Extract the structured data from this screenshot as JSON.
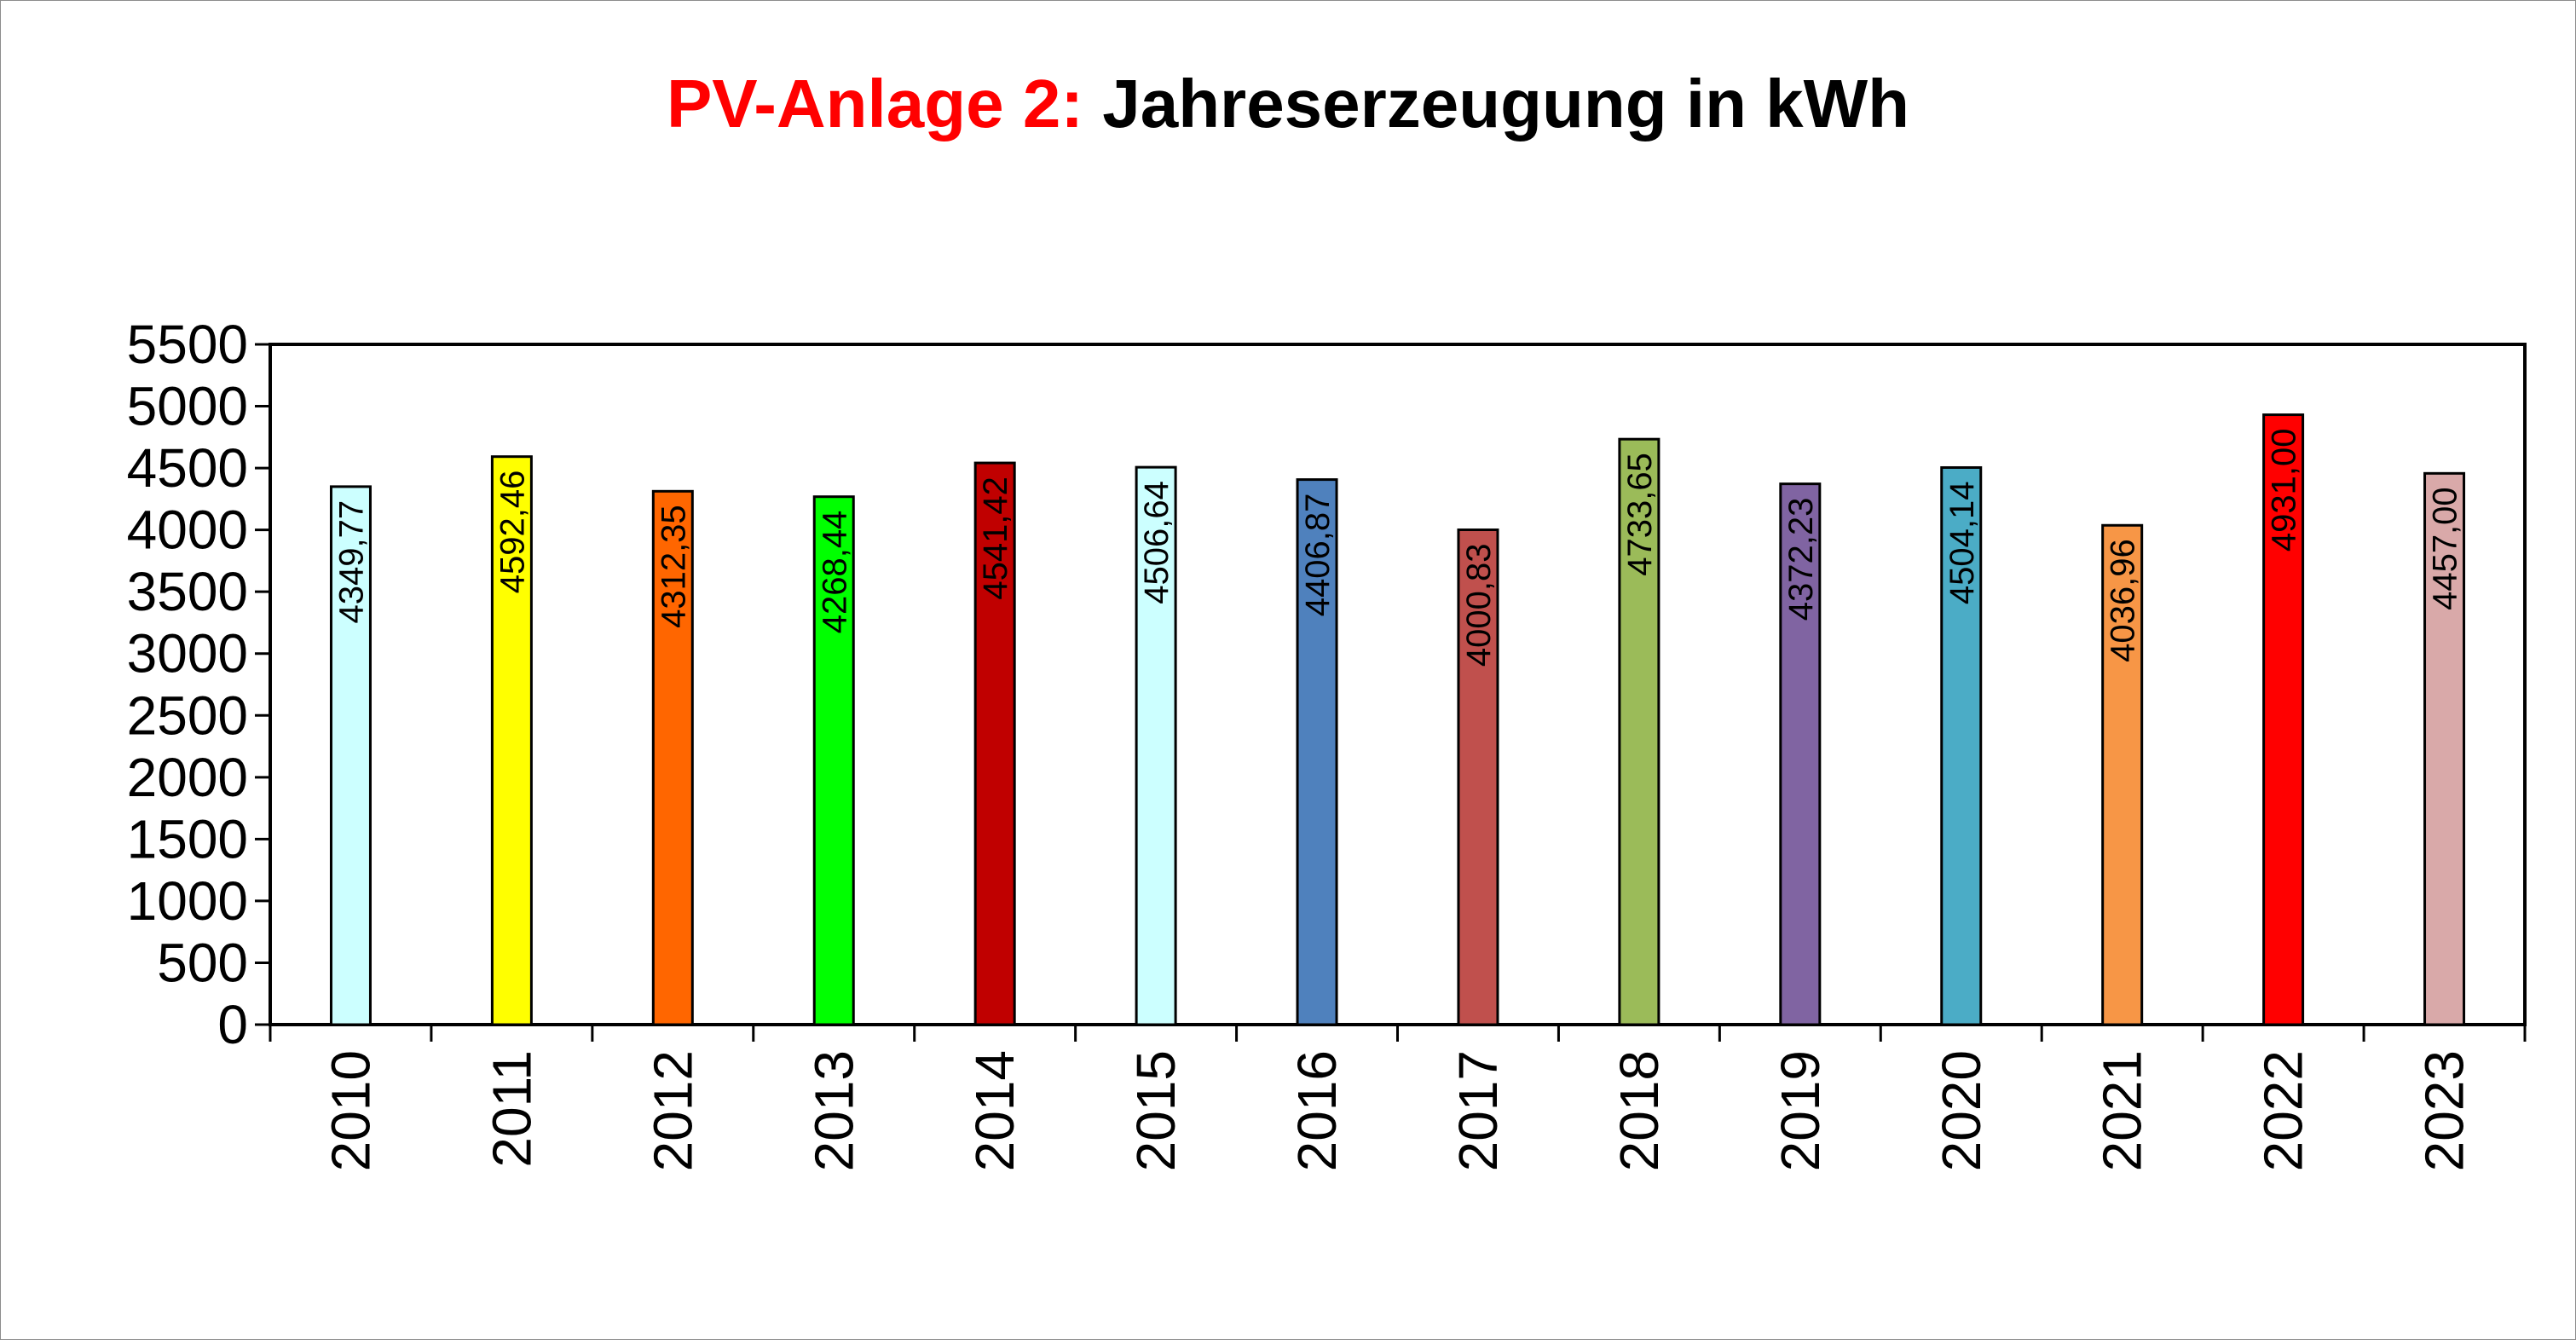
{
  "chart_data": {
    "type": "bar",
    "title_prefix": "PV-Anlage 2:",
    "title_main": "Jahreserzeugung in kWh",
    "categories": [
      "2010",
      "2011",
      "2012",
      "2013",
      "2014",
      "2015",
      "2016",
      "2017",
      "2018",
      "2019",
      "2020",
      "2021",
      "2022",
      "2023"
    ],
    "values": [
      4349.77,
      4592.46,
      4312.35,
      4268.44,
      4541.42,
      4506.64,
      4406.87,
      4000.83,
      4733.65,
      4372.23,
      4504.14,
      4036.96,
      4931.0,
      4457.0
    ],
    "value_labels": [
      "4349,77",
      "4592,46",
      "4312,35",
      "4268,44",
      "4541,42",
      "4506,64",
      "4406,87",
      "4000,83",
      "4733,65",
      "4372,23",
      "4504,14",
      "4036,96",
      "4931,00",
      "4457,00"
    ],
    "bar_colors": [
      "#ccffff",
      "#ffff00",
      "#ff6600",
      "#00ff00",
      "#c00000",
      "#ccffff",
      "#4f81bd",
      "#c0504d",
      "#9bbb59",
      "#8064a2",
      "#4bacc6",
      "#f79646",
      "#ff0000",
      "#d9a9a9"
    ],
    "y_ticks": [
      "0",
      "500",
      "1000",
      "1500",
      "2000",
      "2500",
      "3000",
      "3500",
      "4000",
      "4500",
      "5000",
      "5500"
    ],
    "ylim": [
      0,
      5500
    ],
    "xlabel": "",
    "ylabel": "",
    "grid": false,
    "legend": "none"
  },
  "colors": {
    "title_prefix": "#ff0000",
    "title_main": "#000000",
    "axis": "#000000"
  }
}
